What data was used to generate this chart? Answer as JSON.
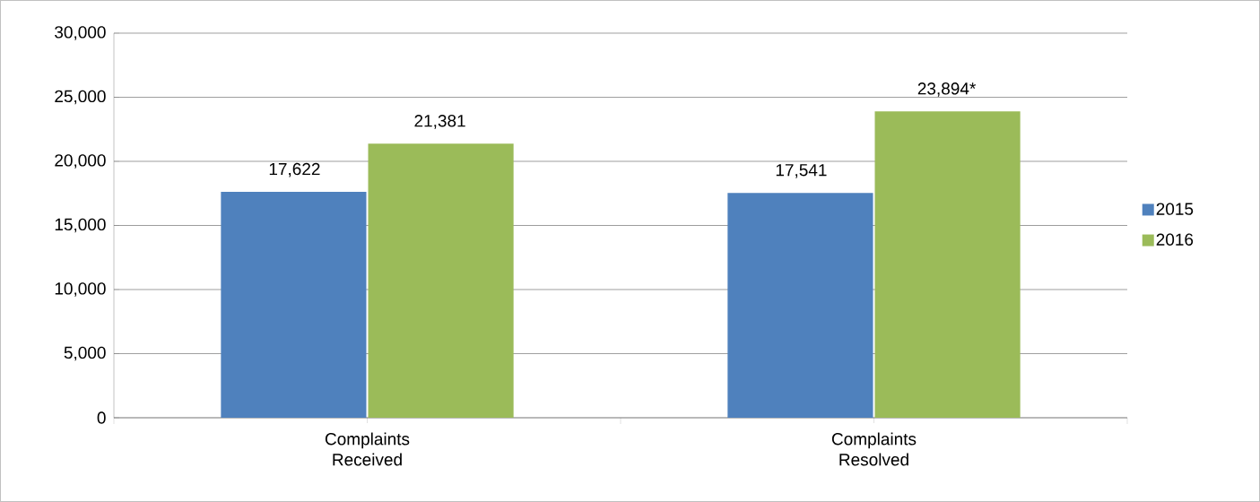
{
  "chart_data": {
    "type": "bar",
    "categories": [
      "Complaints Received",
      "Complaints Resolved"
    ],
    "series": [
      {
        "name": "2015",
        "color": "#4f81bd",
        "values": [
          17622,
          17541
        ],
        "value_labels": [
          "17,622",
          "17,541"
        ]
      },
      {
        "name": "2016",
        "color": "#9bbb59",
        "values": [
          21381,
          23894
        ],
        "value_labels": [
          "21,381",
          "23,894*"
        ]
      }
    ],
    "ylim": [
      0,
      30000
    ],
    "yticks": [
      {
        "value": 0,
        "label": "0"
      },
      {
        "value": 5000,
        "label": "5,000"
      },
      {
        "value": 10000,
        "label": "10,000"
      },
      {
        "value": 15000,
        "label": "15,000"
      },
      {
        "value": 20000,
        "label": "20,000"
      },
      {
        "value": 25000,
        "label": "25,000"
      },
      {
        "value": 30000,
        "label": "30,000"
      }
    ],
    "grid": "y",
    "legend": "right"
  }
}
